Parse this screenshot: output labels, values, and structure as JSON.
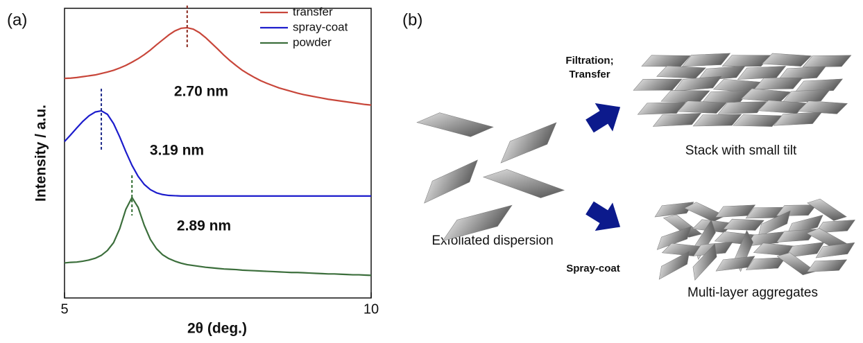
{
  "panel_labels": [
    "(a)",
    "(b)"
  ],
  "chart_data": {
    "type": "line",
    "xlabel": "2θ (deg.)",
    "ylabel": "Intensity / a.u.",
    "xlim": [
      5,
      10
    ],
    "xticks": [
      5,
      10
    ],
    "ylim": [
      0,
      100
    ],
    "legend": "upper right",
    "x": [
      5.0,
      5.1,
      5.2,
      5.3,
      5.4,
      5.5,
      5.6,
      5.7,
      5.8,
      5.9,
      6.0,
      6.1,
      6.2,
      6.3,
      6.4,
      6.5,
      6.6,
      6.7,
      6.8,
      6.9,
      7.0,
      7.1,
      7.2,
      7.3,
      7.4,
      7.5,
      7.6,
      7.7,
      7.8,
      7.9,
      8.0,
      8.1,
      8.2,
      8.3,
      8.4,
      8.5,
      8.6,
      8.7,
      8.8,
      8.9,
      9.0,
      9.1,
      9.2,
      9.3,
      9.4,
      9.5,
      9.6,
      9.7,
      9.8,
      9.9,
      10.0
    ],
    "series": [
      {
        "name": "transfer",
        "color": "#c8463a",
        "values": [
          75.8,
          75.9,
          76.1,
          76.4,
          76.7,
          77.0,
          77.5,
          78.0,
          78.6,
          79.4,
          80.3,
          81.4,
          82.6,
          84.0,
          85.6,
          87.4,
          89.1,
          90.8,
          92.2,
          93.1,
          93.3,
          92.8,
          91.6,
          89.9,
          87.9,
          85.9,
          83.8,
          81.9,
          80.2,
          78.6,
          77.3,
          76.1,
          75.0,
          74.1,
          73.3,
          72.5,
          71.9,
          71.3,
          70.7,
          70.2,
          69.8,
          69.4,
          69.0,
          68.6,
          68.3,
          68.0,
          67.7,
          67.4,
          67.1,
          66.8,
          66.6
        ]
      },
      {
        "name": "spray-coat",
        "color": "#1c1ccc",
        "values": [
          54.0,
          56.3,
          58.7,
          61.0,
          62.9,
          64.2,
          64.6,
          63.4,
          60.2,
          55.6,
          50.5,
          45.8,
          42.0,
          39.2,
          37.4,
          36.3,
          35.7,
          35.4,
          35.3,
          35.2,
          35.2,
          35.2,
          35.2,
          35.2,
          35.2,
          35.2,
          35.2,
          35.2,
          35.2,
          35.2,
          35.2,
          35.2,
          35.2,
          35.2,
          35.2,
          35.2,
          35.2,
          35.2,
          35.2,
          35.2,
          35.2,
          35.2,
          35.2,
          35.2,
          35.2,
          35.2,
          35.2,
          35.2,
          35.2,
          35.2,
          35.2
        ]
      },
      {
        "name": "powder",
        "color": "#3b6e3b",
        "values": [
          12.1,
          12.3,
          12.4,
          12.7,
          13.1,
          13.7,
          14.7,
          16.4,
          19.1,
          23.9,
          30.6,
          34.7,
          31.3,
          25.1,
          20.2,
          17.0,
          14.9,
          13.6,
          12.7,
          12.0,
          11.5,
          11.2,
          10.9,
          10.6,
          10.4,
          10.2,
          10.0,
          9.9,
          9.8,
          9.6,
          9.5,
          9.4,
          9.3,
          9.2,
          9.1,
          9.0,
          8.9,
          8.8,
          8.8,
          8.7,
          8.6,
          8.5,
          8.4,
          8.3,
          8.3,
          8.2,
          8.1,
          8.0,
          8.0,
          7.9,
          7.8
        ]
      }
    ],
    "annotations": [
      {
        "text": "2.70 nm",
        "x": 7.0,
        "color": "#8b2a1f"
      },
      {
        "text": "3.19 nm",
        "x": 5.6,
        "color": "#1e2a8a"
      },
      {
        "text": "2.89 nm",
        "x": 6.1,
        "color": "#2e6b2e"
      }
    ]
  },
  "diagram": {
    "start": "Exfoliated dispersion",
    "routes": [
      {
        "label": [
          "Filtration;",
          "Transfer"
        ],
        "result": "Stack with small tilt"
      },
      {
        "label": [
          "Spray-coat"
        ],
        "result": "Multi-layer aggregates"
      }
    ]
  }
}
